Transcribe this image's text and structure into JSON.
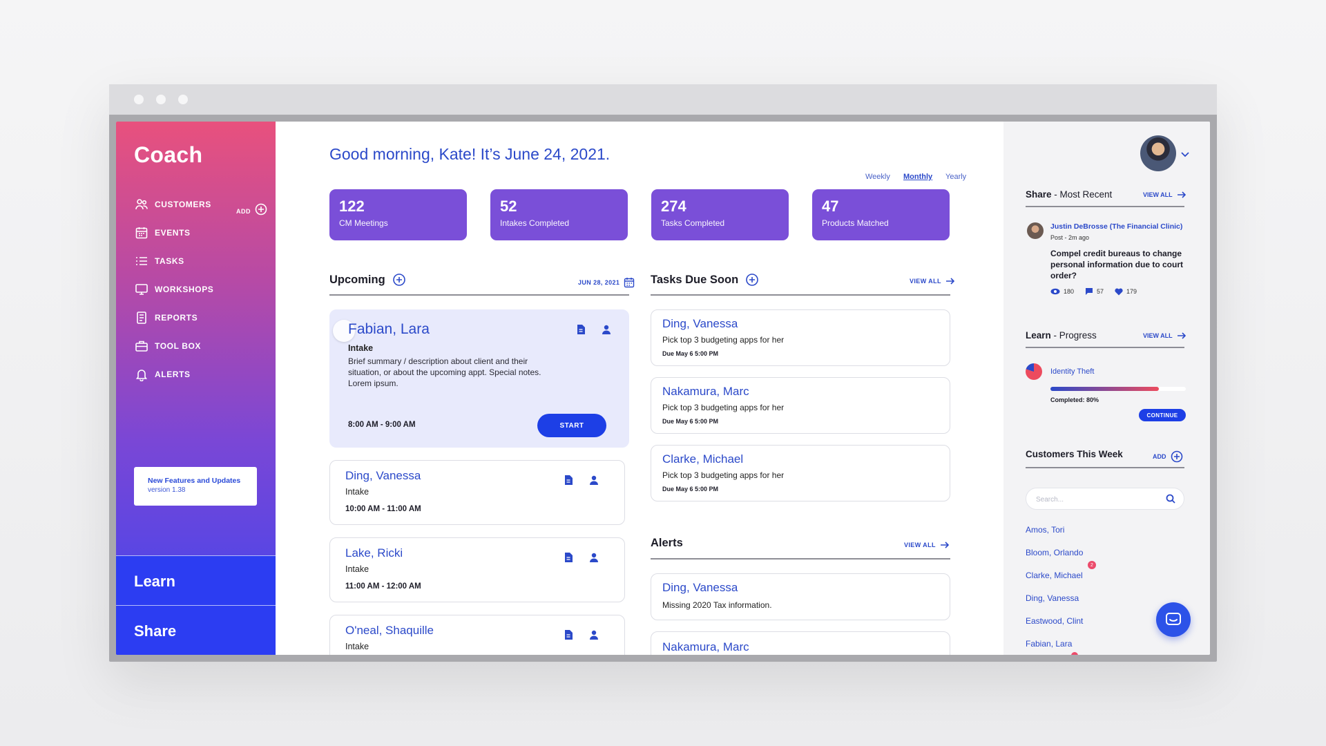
{
  "sidebar": {
    "logo": "Coach",
    "items": [
      {
        "label": "CUSTOMERS",
        "icon": "people-icon"
      },
      {
        "label": "EVENTS",
        "icon": "calendar-icon"
      },
      {
        "label": "TASKS",
        "icon": "list-icon"
      },
      {
        "label": "WORKSHOPS",
        "icon": "monitor-icon"
      },
      {
        "label": "REPORTS",
        "icon": "document-icon"
      },
      {
        "label": "TOOL BOX",
        "icon": "toolbox-icon"
      },
      {
        "label": "ALERTS",
        "icon": "bell-icon"
      }
    ],
    "add_label": "ADD",
    "features": {
      "title": "New Features and Updates",
      "version": "version 1.38"
    },
    "learn": "Learn",
    "share": "Share"
  },
  "header": {
    "greeting": "Good morning, Kate! It’s June 24, 2021.",
    "periods": [
      "Weekly",
      "Monthly",
      "Yearly"
    ],
    "active_period": "Monthly"
  },
  "stats": [
    {
      "value": "122",
      "label": "CM Meetings"
    },
    {
      "value": "52",
      "label": "Intakes Completed"
    },
    {
      "value": "274",
      "label": "Tasks Completed"
    },
    {
      "value": "47",
      "label": "Products Matched"
    }
  ],
  "upcoming": {
    "title": "Upcoming",
    "date": "JUN 28, 2021",
    "featured": {
      "name": "Fabian, Lara",
      "type": "Intake",
      "description": "Brief summary / description about client and their situation, or about the upcoming appt. Special notes. Lorem ipsum.",
      "time": "8:00 AM - 9:00 AM",
      "action": "START"
    },
    "items": [
      {
        "name": "Ding, Vanessa",
        "type": "Intake",
        "time": "10:00 AM - 11:00 AM"
      },
      {
        "name": "Lake, Ricki",
        "type": "Intake",
        "time": "11:00 AM - 12:00 AM"
      },
      {
        "name": "O'neal, Shaquille",
        "type": "Intake",
        "time": ""
      }
    ]
  },
  "tasks": {
    "title": "Tasks Due Soon",
    "view_all": "VIEW ALL",
    "items": [
      {
        "name": "Ding, Vanessa",
        "task": "Pick top 3 budgeting apps for her",
        "due": "Due May 6 5:00 PM"
      },
      {
        "name": "Nakamura, Marc",
        "task": "Pick top 3 budgeting apps for her",
        "due": "Due May 6 5:00 PM"
      },
      {
        "name": "Clarke, Michael",
        "task": "Pick top 3 budgeting apps for her",
        "due": "Due May 6 5:00 PM"
      }
    ]
  },
  "alerts": {
    "title": "Alerts",
    "view_all": "VIEW ALL",
    "items": [
      {
        "name": "Ding, Vanessa",
        "text": "Missing 2020 Tax information."
      },
      {
        "name": "Nakamura, Marc",
        "text": ""
      }
    ]
  },
  "right": {
    "share": {
      "title_bold": "Share",
      "title_rest": " - Most Recent",
      "view_all": "VIEW ALL",
      "author": "Justin DeBrosse (The Financial Clinic)",
      "meta": "Post - 2m ago",
      "text": "Compel credit bureaus to change personal information due to court order?",
      "views": "180",
      "comments": "57",
      "likes": "179"
    },
    "learn": {
      "title_bold": "Learn",
      "title_rest": " - Progress",
      "view_all": "VIEW ALL",
      "course": "Identity Theft",
      "completed_label": "Completed: 80%",
      "progress": 0.8,
      "action": "CONTINUE"
    },
    "customers": {
      "title": "Customers This Week",
      "add_label": "ADD",
      "search_placeholder": "Search...",
      "list": [
        "Amos, Tori",
        "Bloom, Orlando",
        "Clarke, Michael",
        "Ding, Vanessa",
        "Eastwood, Clint",
        "Fabian, Lara"
      ],
      "badge": "2"
    }
  },
  "colors": {
    "accent": "#2b49c9",
    "stat_bg": "#7a4fd8",
    "button": "#1d3fe6",
    "alert": "#ec4b6b"
  }
}
